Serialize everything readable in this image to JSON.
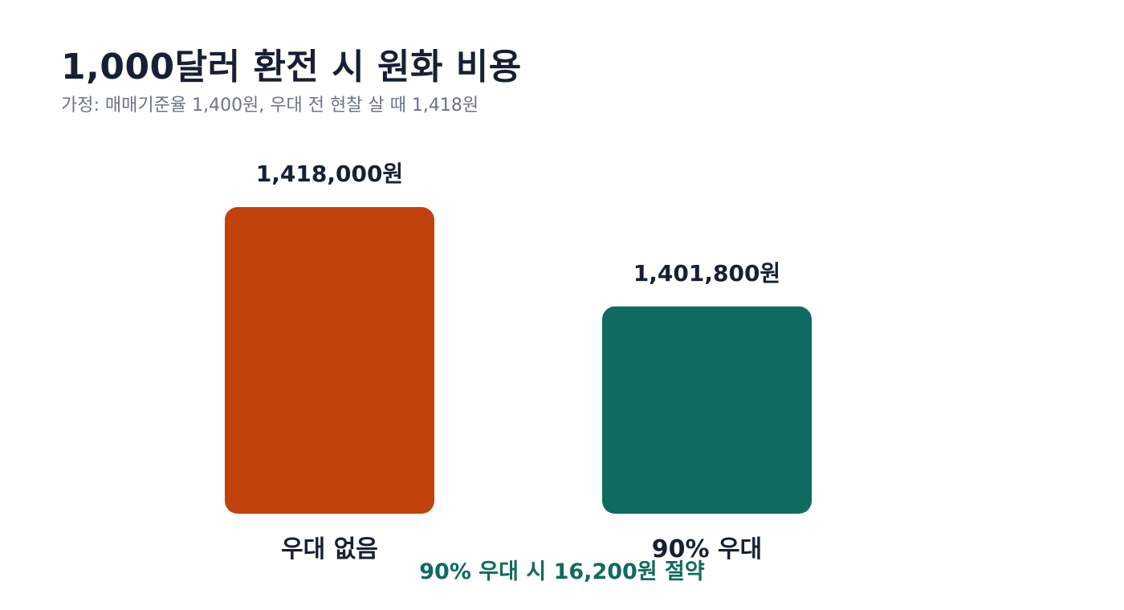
{
  "chart_data": {
    "type": "bar",
    "title": "1,000달러 환전 시 원화 비용",
    "subtitle": "가정: 매매기준율 1,400원, 우대 전 현찰 살 때 1,418원",
    "categories": [
      "우대 없음",
      "90% 우대"
    ],
    "values": [
      1418000,
      1401800
    ],
    "value_labels": [
      "1,418,000원",
      "1,401,800원"
    ],
    "colors": [
      "#c2410c",
      "#0f6b5f"
    ],
    "xlabel": "",
    "ylabel": "",
    "grid": false,
    "legend": "none",
    "annotation": "90% 우대 시 16,200원 절약"
  },
  "style": {
    "title_color": "#172033",
    "subtitle_color": "#6b7485",
    "annotation_color": "#0f6b5f"
  }
}
